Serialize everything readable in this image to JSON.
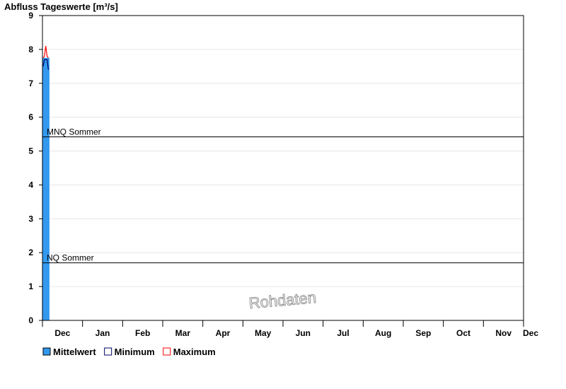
{
  "chart_data": {
    "type": "bar",
    "title": "Abfluss Tageswerte [m³/s]",
    "ylim": [
      0,
      9
    ],
    "y_ticks": [
      "0",
      "1",
      "2",
      "3",
      "4",
      "5",
      "6",
      "7",
      "8",
      "9"
    ],
    "x_tick_labels": [
      "Dec",
      "Jan",
      "Feb",
      "Mar",
      "Apr",
      "May",
      "Jun",
      "Jul",
      "Aug",
      "Sep",
      "Oct",
      "Nov",
      "Dec"
    ],
    "x_days_total": 365,
    "grid": true,
    "series": [
      {
        "name": "Mittelwert",
        "color": "#3399ee",
        "day_values": [
          7.75,
          7.75,
          7.75,
          7.75,
          7.75
        ]
      },
      {
        "name": "Minimum",
        "color": "#000066",
        "day_values": [
          7.5,
          7.7,
          7.7,
          7.7,
          7.4
        ]
      },
      {
        "name": "Maximum",
        "color": "#ff0000",
        "day_values": [
          7.75,
          7.8,
          8.1,
          7.8,
          7.75
        ]
      }
    ],
    "reference_lines": [
      {
        "label": "MNQ Sommer",
        "value": 5.42
      },
      {
        "label": "NQ Sommer",
        "value": 1.7
      }
    ],
    "legend_position": "bottom-left",
    "watermark": "Rohdaten"
  }
}
